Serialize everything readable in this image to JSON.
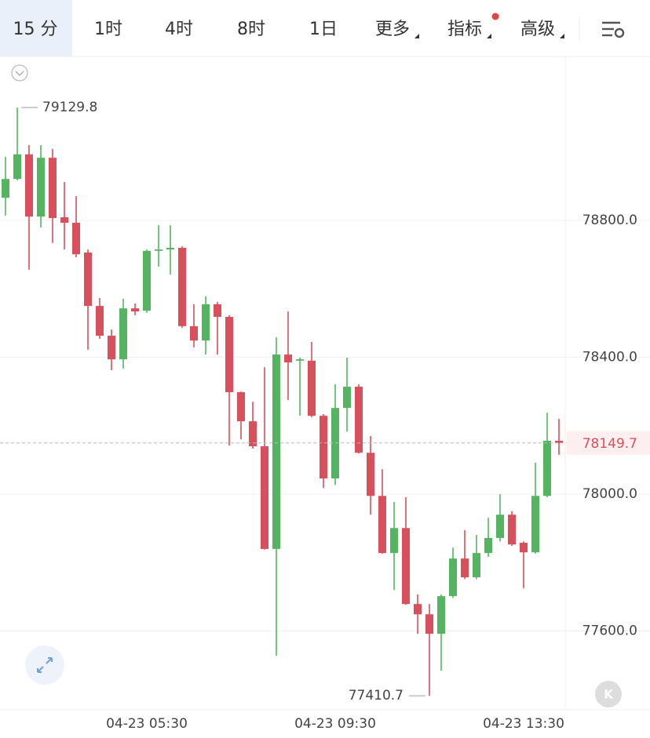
{
  "tabs": [
    "15 分",
    "1时",
    "4时",
    "8时",
    "1日",
    "更多",
    "指标",
    "高级"
  ],
  "chart_data": {
    "type": "candlestick",
    "categories": [
      null,
      null,
      null,
      null,
      null,
      null,
      null,
      null,
      null,
      null,
      null,
      null,
      "04-23 05:30",
      null,
      null,
      null,
      null,
      null,
      null,
      null,
      null,
      null,
      null,
      null,
      null,
      null,
      null,
      null,
      "04-23 09:30",
      null,
      null,
      null,
      null,
      null,
      null,
      null,
      null,
      null,
      null,
      null,
      null,
      null,
      null,
      null,
      "04-23 13:30",
      null,
      null,
      null
    ],
    "open": [
      78866,
      78921,
      78993,
      78811,
      78983,
      78809,
      78793,
      78706,
      78550,
      78463,
      78394,
      78543,
      78536,
      78711,
      78715,
      78720,
      78491,
      78449,
      78555,
      78518,
      78298,
      78213,
      78140,
      77840,
      78408,
      78390,
      78390,
      78229,
      78046,
      78252,
      78314,
      78121,
      77995,
      77828,
      77901,
      77679,
      77649,
      77592,
      77702,
      77812,
      77757,
      77828,
      77872,
      77940,
      77858,
      77830,
      77995,
      78156
    ],
    "high": [
      78986,
      79129.8,
      79020,
      79020,
      79009,
      78912,
      78871,
      78715,
      78573,
      78481,
      78571,
      78557,
      78715,
      78786,
      78786,
      78724,
      78555,
      78578,
      78562,
      78523,
      78300,
      78270,
      78371,
      78458,
      78534,
      78399,
      78445,
      78234,
      78321,
      78399,
      78321,
      78170,
      78073,
      77977,
      77991,
      77707,
      77679,
      77707,
      77844,
      77895,
      77881,
      77931,
      78000,
      77950,
      77862,
      78092,
      78238,
      78220
    ],
    "low": [
      78814,
      78917,
      78656,
      78779,
      78734,
      78715,
      78692,
      78422,
      78454,
      78362,
      78367,
      78523,
      78530,
      78665,
      78642,
      78486,
      78429,
      78408,
      78408,
      78142,
      78160,
      78133,
      77838,
      77528,
      78275,
      78229,
      78225,
      78018,
      78027,
      78183,
      78119,
      77940,
      77826,
      77720,
      77677,
      77592,
      77410.7,
      77484,
      77697,
      77752,
      77752,
      77817,
      77862,
      77849,
      77725,
      77826,
      77991,
      78115
    ],
    "close": [
      78921,
      78993,
      78811,
      78983,
      78807,
      78793,
      78701,
      78550,
      78463,
      78394,
      78543,
      78534,
      78711,
      78715,
      78720,
      78491,
      78449,
      78555,
      78518,
      78298,
      78213,
      78140,
      77840,
      78408,
      78385,
      78394,
      78229,
      78046,
      78252,
      78314,
      78121,
      77995,
      77828,
      77901,
      77679,
      77649,
      77592,
      77702,
      77812,
      77757,
      77828,
      77872,
      77940,
      77853,
      77830,
      77995,
      78156,
      78149.7
    ],
    "up_color": "#55b461",
    "down_color": "#d8505b",
    "ylim": [
      77370,
      79279
    ],
    "yticks": [
      {
        "value": 77600,
        "label": "77600.0"
      },
      {
        "value": 78000,
        "label": "78000.0"
      },
      {
        "value": 78400,
        "label": "78400.0"
      },
      {
        "value": 78800,
        "label": "78800.0"
      }
    ],
    "grid": true
  }
}
